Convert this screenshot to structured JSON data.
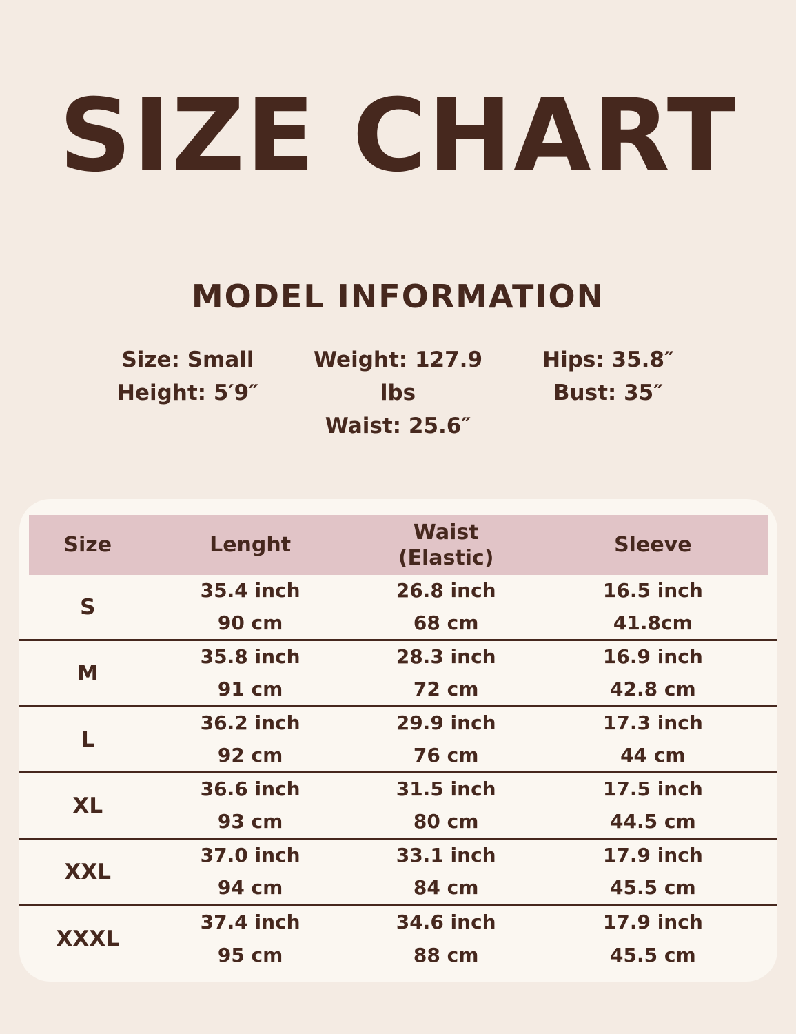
{
  "colors": {
    "page_background": "#f4ebe3",
    "card_background": "#fbf7f1",
    "table_header_band": "#e1c4c7",
    "text_brown": "#46281e"
  },
  "title": "SIZE CHART",
  "model_info": {
    "heading": "MODEL INFORMATION",
    "columns": [
      {
        "line1": "Size: Small",
        "line2": "Height: 5′9″"
      },
      {
        "line1": "Weight: 127.9 lbs",
        "line2": "Waist: 25.6″"
      },
      {
        "line1": "Hips: 35.8″",
        "line2": "Bust: 35″"
      }
    ]
  },
  "size_table": {
    "headers": [
      "Size",
      "Lenght",
      "Waist\n(Elastic)",
      "Sleeve"
    ],
    "rows": [
      {
        "size": "S",
        "length": [
          "35.4 inch",
          "90 cm"
        ],
        "waist": [
          "26.8 inch",
          "68 cm"
        ],
        "sleeve": [
          "16.5 inch",
          "41.8cm"
        ]
      },
      {
        "size": "M",
        "length": [
          "35.8 inch",
          "91 cm"
        ],
        "waist": [
          "28.3 inch",
          "72 cm"
        ],
        "sleeve": [
          "16.9 inch",
          "42.8 cm"
        ]
      },
      {
        "size": "L",
        "length": [
          "36.2 inch",
          "92 cm"
        ],
        "waist": [
          "29.9 inch",
          "76 cm"
        ],
        "sleeve": [
          "17.3 inch",
          "44 cm"
        ]
      },
      {
        "size": "XL",
        "length": [
          "36.6 inch",
          "93 cm"
        ],
        "waist": [
          "31.5 inch",
          "80 cm"
        ],
        "sleeve": [
          "17.5 inch",
          "44.5 cm"
        ]
      },
      {
        "size": "XXL",
        "length": [
          "37.0 inch",
          "94 cm"
        ],
        "waist": [
          "33.1 inch",
          "84 cm"
        ],
        "sleeve": [
          "17.9 inch",
          "45.5 cm"
        ]
      },
      {
        "size": "XXXL",
        "length": [
          "37.4 inch",
          "95 cm"
        ],
        "waist": [
          "34.6 inch",
          "88 cm"
        ],
        "sleeve": [
          "17.9 inch",
          "45.5 cm"
        ]
      }
    ]
  }
}
